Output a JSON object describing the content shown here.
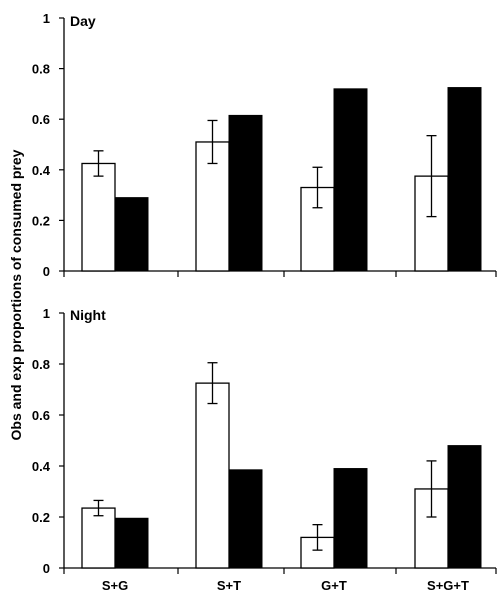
{
  "chart_data": [
    {
      "type": "bar",
      "panel_label": "Day",
      "categories": [
        "S+G",
        "S+T",
        "G+T",
        "S+G+T"
      ],
      "ylabel": "Obs and exp proportions of consumed prey",
      "ylim": [
        0,
        1
      ],
      "yticks": [
        "0",
        "0.2",
        "0.4",
        "0.6",
        "0.8",
        "1"
      ],
      "show_xticklabels": false,
      "series": [
        {
          "kind": "observed",
          "color": "#ffffff",
          "values": [
            0.425,
            0.51,
            0.33,
            0.375
          ],
          "errors": [
            0.05,
            0.085,
            0.08,
            0.16
          ]
        },
        {
          "kind": "expected",
          "color": "#000000",
          "values": [
            0.29,
            0.615,
            0.72,
            0.725
          ]
        }
      ]
    },
    {
      "type": "bar",
      "panel_label": "Night",
      "categories": [
        "S+G",
        "S+T",
        "G+T",
        "S+G+T"
      ],
      "ylim": [
        0,
        1
      ],
      "yticks": [
        "0",
        "0.2",
        "0.4",
        "0.6",
        "0.8",
        "1"
      ],
      "show_xticklabels": true,
      "series": [
        {
          "kind": "observed",
          "color": "#ffffff",
          "values": [
            0.235,
            0.725,
            0.12,
            0.31
          ],
          "errors": [
            0.03,
            0.08,
            0.05,
            0.11
          ]
        },
        {
          "kind": "expected",
          "color": "#000000",
          "values": [
            0.195,
            0.385,
            0.39,
            0.48
          ]
        }
      ]
    }
  ]
}
